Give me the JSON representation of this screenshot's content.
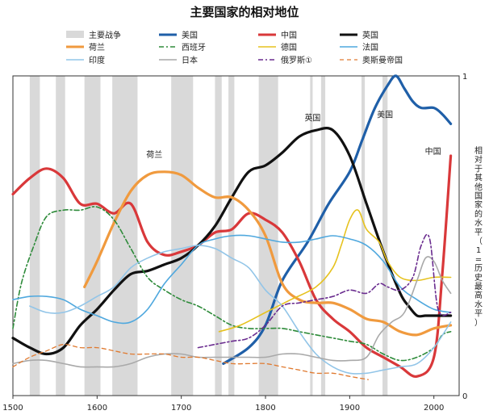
{
  "chart_data": {
    "type": "line",
    "title": "主要国家的相对地位",
    "xlabel": "",
    "ylabel": "相对于其他国家的水平（1=历史最高水平）",
    "xlim": [
      1500,
      2030
    ],
    "ylim": [
      0,
      1
    ],
    "x_ticks": [
      1500,
      1600,
      1700,
      1800,
      1900,
      2000
    ],
    "y_ticks": [
      0,
      1
    ],
    "legend_position": "top",
    "grid": false,
    "war_band_label": "主要战争",
    "war_band_color": "#d9d9d9",
    "war_periods": [
      [
        1520,
        1532
      ],
      [
        1551,
        1562
      ],
      [
        1585,
        1604
      ],
      [
        1618,
        1648
      ],
      [
        1688,
        1714
      ],
      [
        1740,
        1748
      ],
      [
        1756,
        1763
      ],
      [
        1792,
        1815
      ],
      [
        1853,
        1856
      ],
      [
        1866,
        1871
      ],
      [
        1914,
        1918
      ],
      [
        1939,
        1945
      ]
    ],
    "annotations": [
      {
        "text": "荷兰",
        "x": 1668,
        "y": 0.745
      },
      {
        "text": "英国",
        "x": 1856,
        "y": 0.86
      },
      {
        "text": "美国",
        "x": 1942,
        "y": 0.87
      },
      {
        "text": "中国",
        "x": 1999,
        "y": 0.755
      }
    ],
    "series": [
      {
        "name": "美国",
        "color": "#1f5fa8",
        "width": 3.2,
        "dash": "",
        "x": [
          1750,
          1780,
          1800,
          1820,
          1850,
          1875,
          1900,
          1915,
          1930,
          1945,
          1955,
          1965,
          1975,
          1985,
          2000,
          2010,
          2020
        ],
        "y": [
          0.1,
          0.15,
          0.22,
          0.36,
          0.48,
          0.6,
          0.7,
          0.8,
          0.9,
          0.97,
          1.0,
          0.96,
          0.92,
          0.9,
          0.9,
          0.88,
          0.85
        ]
      },
      {
        "name": "中国",
        "color": "#d9383a",
        "width": 3.2,
        "dash": "",
        "x": [
          1500,
          1520,
          1540,
          1560,
          1580,
          1600,
          1620,
          1640,
          1660,
          1680,
          1700,
          1720,
          1740,
          1760,
          1780,
          1800,
          1820,
          1840,
          1860,
          1880,
          1900,
          1920,
          1940,
          1960,
          1980,
          2000,
          2010,
          2020
        ],
        "y": [
          0.63,
          0.68,
          0.71,
          0.68,
          0.6,
          0.6,
          0.57,
          0.6,
          0.48,
          0.44,
          0.45,
          0.47,
          0.51,
          0.52,
          0.57,
          0.55,
          0.51,
          0.42,
          0.3,
          0.24,
          0.2,
          0.15,
          0.12,
          0.09,
          0.06,
          0.12,
          0.38,
          0.75
        ]
      },
      {
        "name": "英国",
        "color": "#111111",
        "width": 3.2,
        "dash": "",
        "x": [
          1500,
          1520,
          1540,
          1560,
          1580,
          1600,
          1620,
          1640,
          1660,
          1680,
          1700,
          1720,
          1740,
          1760,
          1780,
          1800,
          1820,
          1840,
          1860,
          1880,
          1900,
          1920,
          1940,
          1960,
          1970,
          1980,
          1990,
          2000,
          2020
        ],
        "y": [
          0.18,
          0.15,
          0.13,
          0.15,
          0.22,
          0.27,
          0.33,
          0.38,
          0.39,
          0.41,
          0.43,
          0.47,
          0.53,
          0.62,
          0.7,
          0.72,
          0.76,
          0.81,
          0.83,
          0.83,
          0.75,
          0.6,
          0.45,
          0.32,
          0.28,
          0.25,
          0.25,
          0.25,
          0.25
        ]
      },
      {
        "name": "荷兰",
        "color": "#f09a3e",
        "width": 3.2,
        "dash": "",
        "x": [
          1585,
          1600,
          1620,
          1640,
          1660,
          1680,
          1700,
          1720,
          1740,
          1760,
          1780,
          1800,
          1820,
          1840,
          1860,
          1880,
          1900,
          1920,
          1940,
          1960,
          1980,
          2000,
          2020
        ],
        "y": [
          0.34,
          0.42,
          0.54,
          0.64,
          0.69,
          0.7,
          0.69,
          0.65,
          0.62,
          0.62,
          0.58,
          0.5,
          0.35,
          0.3,
          0.29,
          0.29,
          0.27,
          0.24,
          0.23,
          0.2,
          0.19,
          0.21,
          0.22
        ]
      },
      {
        "name": "西班牙",
        "color": "#2e8b3a",
        "width": 1.6,
        "dash": "6,3,2,3",
        "x": [
          1500,
          1510,
          1525,
          1540,
          1560,
          1580,
          1600,
          1620,
          1640,
          1660,
          1680,
          1700,
          1720,
          1740,
          1760,
          1780,
          1800,
          1820,
          1840,
          1860,
          1880,
          1900,
          1920,
          1940,
          1960,
          1980,
          2000,
          2010,
          2020
        ],
        "y": [
          0.21,
          0.35,
          0.47,
          0.56,
          0.58,
          0.58,
          0.59,
          0.55,
          0.46,
          0.37,
          0.33,
          0.3,
          0.28,
          0.25,
          0.22,
          0.21,
          0.21,
          0.21,
          0.2,
          0.19,
          0.18,
          0.17,
          0.16,
          0.13,
          0.11,
          0.12,
          0.15,
          0.19,
          0.2
        ]
      },
      {
        "name": "德国",
        "color": "#e6c21e",
        "width": 1.6,
        "dash": "",
        "x": [
          1745,
          1770,
          1800,
          1830,
          1860,
          1880,
          1890,
          1900,
          1910,
          1920,
          1935,
          1945,
          1960,
          1980,
          2000,
          2020
        ],
        "y": [
          0.2,
          0.22,
          0.26,
          0.3,
          0.34,
          0.4,
          0.47,
          0.55,
          0.58,
          0.52,
          0.48,
          0.42,
          0.37,
          0.36,
          0.37,
          0.37
        ]
      },
      {
        "name": "法国",
        "color": "#4fa8de",
        "width": 1.6,
        "dash": "",
        "x": [
          1500,
          1520,
          1540,
          1560,
          1580,
          1600,
          1620,
          1640,
          1660,
          1680,
          1700,
          1720,
          1740,
          1760,
          1780,
          1800,
          1820,
          1840,
          1860,
          1880,
          1900,
          1920,
          1940,
          1960,
          1980,
          2000,
          2020
        ],
        "y": [
          0.3,
          0.31,
          0.31,
          0.3,
          0.27,
          0.25,
          0.23,
          0.23,
          0.27,
          0.35,
          0.41,
          0.47,
          0.49,
          0.5,
          0.5,
          0.49,
          0.48,
          0.48,
          0.49,
          0.5,
          0.49,
          0.47,
          0.42,
          0.34,
          0.3,
          0.27,
          0.26
        ]
      },
      {
        "name": "印度",
        "color": "#92c5e8",
        "width": 1.6,
        "dash": "",
        "x": [
          1520,
          1540,
          1560,
          1580,
          1600,
          1620,
          1640,
          1660,
          1680,
          1700,
          1720,
          1740,
          1760,
          1780,
          1800,
          1820,
          1840,
          1860,
          1880,
          1900,
          1920,
          1940,
          1960,
          1980,
          2000,
          2020
        ],
        "y": [
          0.28,
          0.26,
          0.26,
          0.28,
          0.31,
          0.34,
          0.4,
          0.43,
          0.45,
          0.46,
          0.47,
          0.46,
          0.43,
          0.4,
          0.33,
          0.28,
          0.2,
          0.13,
          0.09,
          0.07,
          0.07,
          0.08,
          0.09,
          0.1,
          0.15,
          0.23
        ]
      },
      {
        "name": "日本",
        "color": "#a9a9a9",
        "width": 1.6,
        "dash": "",
        "x": [
          1500,
          1520,
          1540,
          1560,
          1580,
          1600,
          1620,
          1640,
          1660,
          1680,
          1700,
          1720,
          1740,
          1760,
          1780,
          1800,
          1820,
          1840,
          1860,
          1880,
          1900,
          1920,
          1935,
          1950,
          1965,
          1980,
          1990,
          2000,
          2010,
          2020
        ],
        "y": [
          0.1,
          0.11,
          0.11,
          0.1,
          0.09,
          0.09,
          0.09,
          0.1,
          0.12,
          0.13,
          0.13,
          0.12,
          0.12,
          0.12,
          0.12,
          0.12,
          0.13,
          0.13,
          0.12,
          0.11,
          0.11,
          0.12,
          0.19,
          0.23,
          0.26,
          0.36,
          0.43,
          0.42,
          0.36,
          0.32
        ]
      },
      {
        "name": "俄罗斯①",
        "color": "#6a2c8f",
        "width": 1.6,
        "dash": "6,3,2,3",
        "x": [
          1720,
          1740,
          1760,
          1780,
          1800,
          1820,
          1840,
          1860,
          1880,
          1900,
          1920,
          1935,
          1945,
          1960,
          1975,
          1985,
          1995,
          2005,
          2020
        ],
        "y": [
          0.15,
          0.16,
          0.17,
          0.18,
          0.22,
          0.28,
          0.29,
          0.3,
          0.31,
          0.33,
          0.32,
          0.35,
          0.34,
          0.33,
          0.37,
          0.47,
          0.49,
          0.27,
          0.26
        ]
      },
      {
        "name": "奥斯曼帝国",
        "color": "#e07a30",
        "width": 1.3,
        "dash": "5,4",
        "x": [
          1500,
          1520,
          1540,
          1560,
          1580,
          1600,
          1620,
          1640,
          1660,
          1680,
          1700,
          1720,
          1740,
          1760,
          1780,
          1800,
          1820,
          1840,
          1860,
          1880,
          1900,
          1922
        ],
        "y": [
          0.09,
          0.12,
          0.14,
          0.16,
          0.15,
          0.15,
          0.14,
          0.13,
          0.13,
          0.13,
          0.12,
          0.12,
          0.11,
          0.1,
          0.1,
          0.1,
          0.09,
          0.08,
          0.07,
          0.07,
          0.06,
          0.05
        ]
      }
    ]
  }
}
